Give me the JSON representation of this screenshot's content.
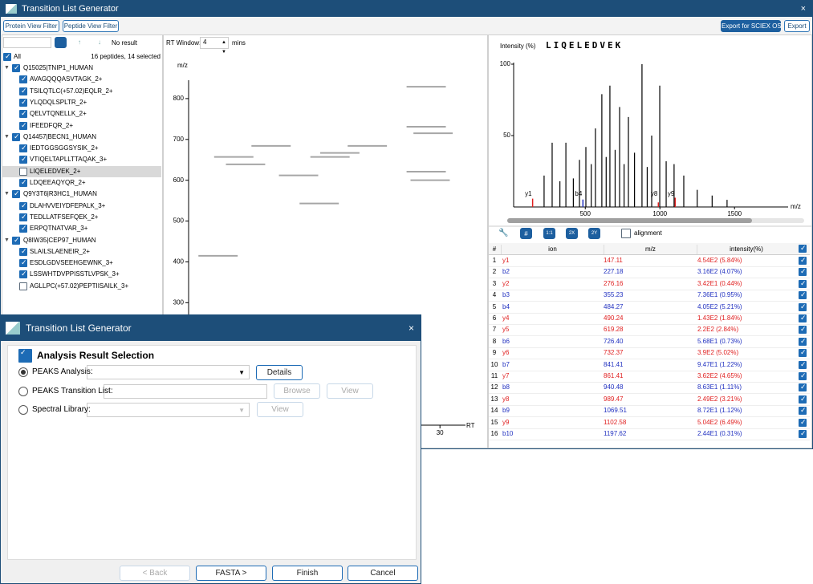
{
  "main_window": {
    "title": "Transition List Generator",
    "close": "×"
  },
  "toolbar": {
    "left_buttons": [
      "Protein View Filter",
      "Peptide View Filter"
    ],
    "right_buttons": [
      "Export for SCIEX OS",
      "Export"
    ]
  },
  "protein_panel": {
    "status": "No result",
    "all_label": "All",
    "summary": "16 peptides, 14 selected",
    "proteins": [
      {
        "name": "Q15025|TNIP1_HUMAN",
        "checked": true,
        "peptides": [
          {
            "name": "AVAGQQQASVTAGK_2+",
            "checked": true
          },
          {
            "name": "TSILQTLC(+57.02)EQLR_2+",
            "checked": true
          },
          {
            "name": "YLQDQLSPLTR_2+",
            "checked": true
          },
          {
            "name": "QELVTQNELLK_2+",
            "checked": true
          },
          {
            "name": "IFEEDFQR_2+",
            "checked": true
          }
        ]
      },
      {
        "name": "Q14457|BECN1_HUMAN",
        "checked": true,
        "peptides": [
          {
            "name": "IEDTGGSGGSYSIK_2+",
            "checked": true
          },
          {
            "name": "VTIQELTAPLLTTAQAK_3+",
            "checked": true
          },
          {
            "name": "LIQELEDVEK_2+",
            "checked": false,
            "selected": true
          },
          {
            "name": "LDQEEAQYQR_2+",
            "checked": true
          }
        ]
      },
      {
        "name": "Q9Y3T6|R3HC1_HUMAN",
        "checked": true,
        "peptides": [
          {
            "name": "DLAHVVEIYDFEPALK_3+",
            "checked": true
          },
          {
            "name": "TEDLLATFSEFQEK_2+",
            "checked": true
          },
          {
            "name": "ERPQTNATVAR_3+",
            "checked": true
          }
        ]
      },
      {
        "name": "Q8IW35|CEP97_HUMAN",
        "checked": true,
        "peptides": [
          {
            "name": "SLAILSLAENEIR_2+",
            "checked": true
          },
          {
            "name": "ESDLGDVSEEHGEWNK_3+",
            "checked": true
          },
          {
            "name": "LSSWHTDVPPISSTLVPSK_3+",
            "checked": true
          },
          {
            "name": "AGLLPC(+57.02)PEPTIISAILK_3+",
            "checked": false
          }
        ]
      }
    ]
  },
  "rt_panel": {
    "window_label": "RT Window:",
    "window_value": 4,
    "window_unit": "mins",
    "rt_chart": {
      "type": "segments",
      "y_label": "m/z",
      "x_label": "RT",
      "ylim": [
        0,
        845
      ],
      "yticks": [
        300,
        400,
        500,
        600,
        700,
        800
      ],
      "xlim": [
        4.4,
        32.6
      ],
      "xticks": [
        30
      ],
      "color": "#a6a6a6",
      "segments": [
        {
          "mz": 415,
          "rt": [
            5.4,
            9.4
          ]
        },
        {
          "mz": 657,
          "rt": [
            7.0,
            11.0
          ]
        },
        {
          "mz": 639,
          "rt": [
            8.2,
            12.2
          ]
        },
        {
          "mz": 684,
          "rt": [
            10.8,
            14.8
          ]
        },
        {
          "mz": 612,
          "rt": [
            13.6,
            17.6
          ]
        },
        {
          "mz": 543,
          "rt": [
            15.7,
            19.7
          ]
        },
        {
          "mz": 657,
          "rt": [
            16.8,
            20.8
          ]
        },
        {
          "mz": 667,
          "rt": [
            17.8,
            21.8
          ]
        },
        {
          "mz": 684,
          "rt": [
            20.6,
            24.6
          ]
        },
        {
          "mz": 829,
          "rt": [
            26.6,
            30.6
          ]
        },
        {
          "mz": 731,
          "rt": [
            26.6,
            30.6
          ]
        },
        {
          "mz": 715,
          "rt": [
            27.3,
            31.3
          ]
        },
        {
          "mz": 621,
          "rt": [
            26.6,
            30.6
          ]
        },
        {
          "mz": 600,
          "rt": [
            27.0,
            31.0
          ]
        }
      ]
    }
  },
  "spectrum": {
    "type": "stick",
    "y_label": "Intensity (%)",
    "x_label": "m/z",
    "sequence": "LIQELEDVEK",
    "ylim": [
      0,
      100
    ],
    "yticks": [
      50,
      100
    ],
    "xlim": [
      20,
      1800
    ],
    "xticks": [
      500,
      1000,
      1500
    ],
    "color": "#000000",
    "peaks": {
      "mz": [
        224,
        278,
        330,
        370,
        420,
        461,
        504,
        540,
        568,
        611,
        640,
        665,
        700,
        730,
        760,
        789,
        830,
        880,
        915,
        945,
        999,
        1042,
        1095,
        1160,
        1250,
        1350,
        1450
      ],
      "intensity": [
        22,
        45,
        18,
        45,
        20,
        33,
        42,
        30,
        55,
        79,
        35,
        85,
        40,
        70,
        30,
        63,
        38,
        100,
        28,
        50,
        85,
        32,
        30,
        22,
        12,
        8,
        5
      ]
    },
    "annotations": [
      {
        "label": "y1",
        "mz": 147.11,
        "intensity": 5.84,
        "color": "#e02020"
      },
      {
        "label": "b4",
        "mz": 484.27,
        "intensity": 5.21,
        "color": "#2030c0"
      },
      {
        "label": "y8",
        "mz": 989.47,
        "intensity": 3.21,
        "color": "#e02020"
      },
      {
        "label": "y9",
        "mz": 1102.58,
        "intensity": 6.49,
        "color": "#e02020"
      }
    ]
  },
  "spectrum_toolbar": {
    "buttons": [
      "#",
      "1:1",
      "2X",
      "2Y"
    ],
    "alignment": "alignment"
  },
  "ion_table": {
    "headers": [
      "#",
      "ion",
      "m/z",
      "intensity(%)"
    ],
    "rows": [
      [
        "1",
        "y1",
        "147.11",
        "4.54E2 (5.84%)"
      ],
      [
        "2",
        "b2",
        "227.18",
        "3.16E2 (4.07%)"
      ],
      [
        "3",
        "y2",
        "276.16",
        "3.42E1 (0.44%)"
      ],
      [
        "4",
        "b3",
        "355.23",
        "7.36E1 (0.95%)"
      ],
      [
        "5",
        "b4",
        "484.27",
        "4.05E2 (5.21%)"
      ],
      [
        "6",
        "y4",
        "490.24",
        "1.43E2 (1.84%)"
      ],
      [
        "7",
        "y5",
        "619.28",
        "2.2E2 (2.84%)"
      ],
      [
        "8",
        "b6",
        "726.40",
        "5.68E1 (0.73%)"
      ],
      [
        "9",
        "y6",
        "732.37",
        "3.9E2 (5.02%)"
      ],
      [
        "10",
        "b7",
        "841.41",
        "9.47E1 (1.22%)"
      ],
      [
        "11",
        "y7",
        "861.41",
        "3.62E2 (4.65%)"
      ],
      [
        "12",
        "b8",
        "940.48",
        "8.63E1 (1.11%)"
      ],
      [
        "13",
        "y8",
        "989.47",
        "2.49E2 (3.21%)"
      ],
      [
        "14",
        "b9",
        "1069.51",
        "8.72E1 (1.12%)"
      ],
      [
        "15",
        "y9",
        "1102.58",
        "5.04E2 (6.49%)"
      ],
      [
        "16",
        "b10",
        "1197.62",
        "2.44E1 (0.31%)"
      ]
    ]
  },
  "dialog": {
    "title": "Transition List Generator",
    "close": "×",
    "heading": "Analysis Result Selection",
    "options": [
      {
        "label": "PEAKS Analysis:",
        "selected": true,
        "buttons": [
          "Details"
        ]
      },
      {
        "label": "PEAKS Transition List:",
        "selected": false,
        "buttons": [
          "Browse",
          "View"
        ]
      },
      {
        "label": "Spectral Library:",
        "selected": false,
        "buttons": [
          "View"
        ]
      }
    ],
    "nav_buttons": [
      "< Back",
      "FASTA >",
      "Finish",
      "Cancel"
    ]
  }
}
